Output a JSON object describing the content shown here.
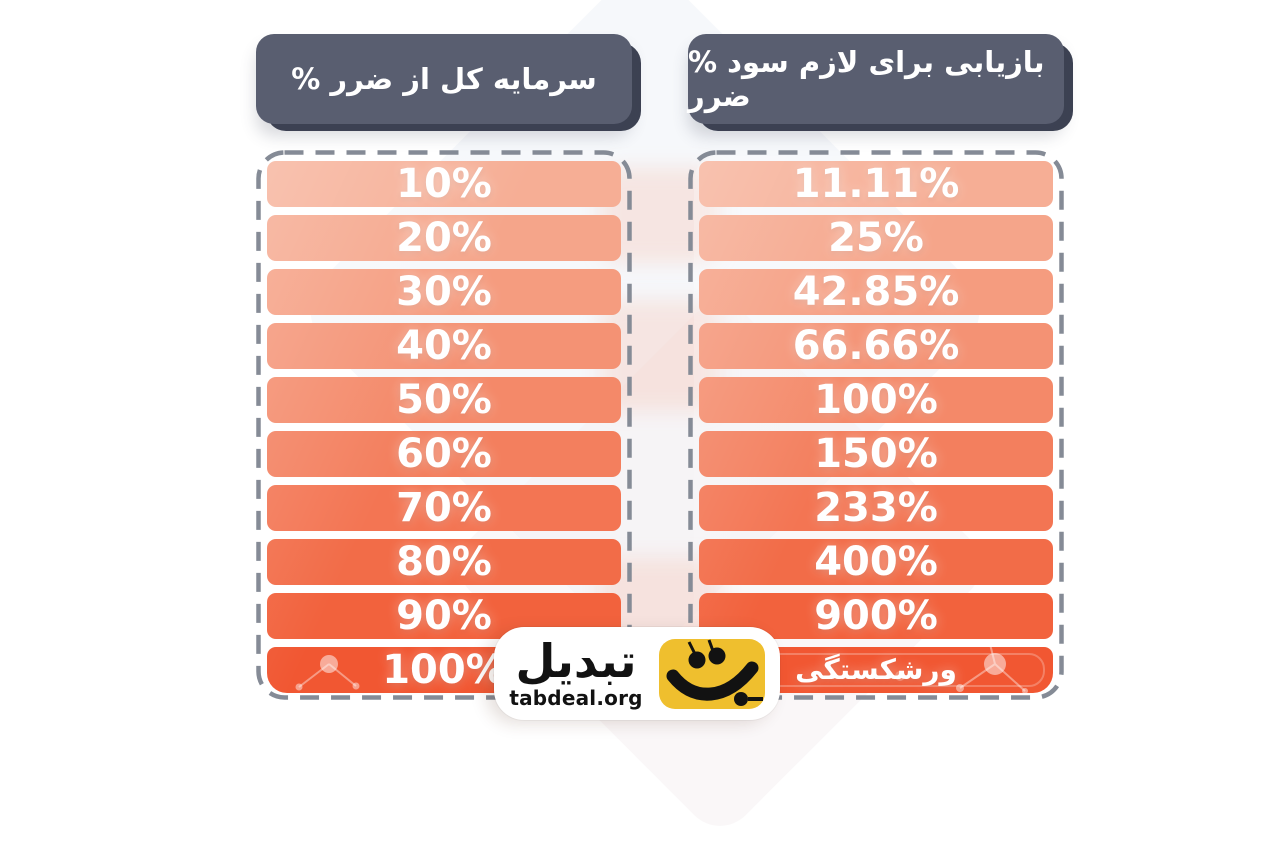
{
  "headers": {
    "loss_label": "% ضرر از کل سرمایه",
    "profit_label": "% سود لازم برای بازیابی ضرر"
  },
  "chart_data": {
    "type": "table",
    "columns": [
      "% ضرر از کل سرمایه",
      "% سود لازم برای بازیابی ضرر"
    ],
    "rows": [
      [
        "10%",
        "11.11%"
      ],
      [
        "20%",
        "25%"
      ],
      [
        "30%",
        "42.85%"
      ],
      [
        "40%",
        "66.66%"
      ],
      [
        "50%",
        "100%"
      ],
      [
        "60%",
        "150%"
      ],
      [
        "70%",
        "233%"
      ],
      [
        "80%",
        "400%"
      ],
      [
        "90%",
        "900%"
      ],
      [
        "100%",
        "ورشکستگی"
      ]
    ]
  },
  "colors": {
    "header_bg": "#595E70",
    "header_shadow": "#3D4253",
    "dash_border": "#858B96",
    "row_gradient": [
      "#F6AE95",
      "#F5A58A",
      "#F59C7F",
      "#F49274",
      "#F48969",
      "#F37F5E",
      "#F37553",
      "#F26C48",
      "#F2623D",
      "#F15732"
    ],
    "logo_yellow": "#EFBF2E",
    "text_white": "#FFFFFF"
  },
  "logo": {
    "brand": "تبدیل",
    "site": "tabdeal.org"
  }
}
